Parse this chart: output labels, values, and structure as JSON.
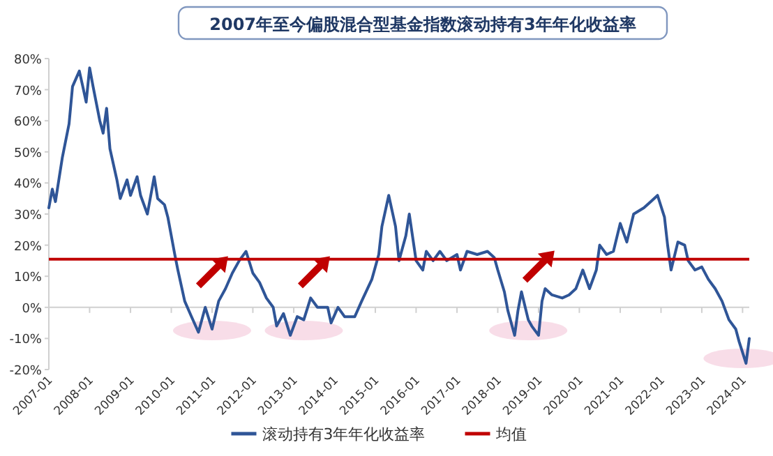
{
  "chart_data": {
    "type": "line",
    "title": "2007年至今偏股混合型基金指数滚动持有3年年化收益率",
    "x": [
      "2007-01",
      "2007-02",
      "2007-03",
      "2007-05",
      "2007-07",
      "2007-08",
      "2007-10",
      "2007-11",
      "2007-12",
      "2008-01",
      "2008-02",
      "2008-04",
      "2008-05",
      "2008-06",
      "2008-07",
      "2008-09",
      "2008-10",
      "2008-12",
      "2009-01",
      "2009-03",
      "2009-04",
      "2009-06",
      "2009-08",
      "2009-09",
      "2009-11",
      "2009-12",
      "2010-02",
      "2010-03",
      "2010-05",
      "2010-07",
      "2010-09",
      "2010-11",
      "2011-01",
      "2011-03",
      "2011-05",
      "2011-07",
      "2011-09",
      "2011-11",
      "2012-01",
      "2012-03",
      "2012-05",
      "2012-07",
      "2012-08",
      "2012-10",
      "2012-12",
      "2013-02",
      "2013-04",
      "2013-06",
      "2013-08",
      "2013-11",
      "2013-12",
      "2014-02",
      "2014-04",
      "2014-07",
      "2014-09",
      "2014-12",
      "2015-02",
      "2015-03",
      "2015-05",
      "2015-07",
      "2015-08",
      "2015-10",
      "2015-11",
      "2016-01",
      "2016-03",
      "2016-04",
      "2016-06",
      "2016-08",
      "2016-10",
      "2017-01",
      "2017-02",
      "2017-04",
      "2017-07",
      "2017-10",
      "2017-12",
      "2018-01",
      "2018-03",
      "2018-04",
      "2018-06",
      "2018-07",
      "2018-08",
      "2018-10",
      "2018-11",
      "2019-01",
      "2019-02",
      "2019-03",
      "2019-05",
      "2019-08",
      "2019-10",
      "2019-12",
      "2020-02",
      "2020-04",
      "2020-06",
      "2020-07",
      "2020-09",
      "2020-11",
      "2021-01",
      "2021-03",
      "2021-05",
      "2021-08",
      "2021-10",
      "2021-12",
      "2022-02",
      "2022-03",
      "2022-04",
      "2022-06",
      "2022-08",
      "2022-09",
      "2022-11",
      "2023-01",
      "2023-03",
      "2023-05",
      "2023-07",
      "2023-09",
      "2023-11",
      "2023-12",
      "2024-02",
      "2024-03"
    ],
    "series": [
      {
        "name": "滚动持有3年年化收益率",
        "color": "#2f5597",
        "values": [
          32,
          38,
          34,
          48,
          59,
          71,
          76,
          71,
          66,
          77,
          71,
          60,
          56,
          64,
          51,
          41,
          35,
          41,
          36,
          42,
          36,
          30,
          42,
          35,
          33,
          29,
          17,
          12,
          2,
          -3,
          -8,
          0,
          -7,
          2,
          6,
          11,
          15,
          18,
          11,
          8,
          3,
          0,
          -6,
          -2,
          -9,
          -3,
          -4,
          3,
          0,
          0,
          -5,
          0,
          -3,
          -3,
          2,
          9,
          17,
          26,
          36,
          26,
          15,
          23,
          30,
          15,
          12,
          18,
          15,
          18,
          15,
          17,
          12,
          18,
          17,
          18,
          16,
          12,
          5,
          -1,
          -9,
          -1,
          5,
          -4,
          -6,
          -9,
          2,
          6,
          4,
          3,
          4,
          6,
          12,
          6,
          12,
          20,
          17,
          18,
          27,
          21,
          30,
          32,
          34,
          36,
          29,
          20,
          12,
          21,
          20,
          15,
          12,
          13,
          9,
          6,
          2,
          -4,
          -7,
          -11,
          -18,
          -10
        ]
      }
    ],
    "xlim": [
      "2007-01",
      "2024-03"
    ],
    "xticks": [
      "2007-01",
      "2008-01",
      "2009-01",
      "2010-01",
      "2011-01",
      "2012-01",
      "2013-01",
      "2014-01",
      "2015-01",
      "2016-01",
      "2017-01",
      "2018-01",
      "2019-01",
      "2020-01",
      "2021-01",
      "2022-01",
      "2023-01",
      "2024-01"
    ],
    "ylim": [
      -20,
      80
    ],
    "yticks": [
      {
        "value": -20,
        "label": "-20%"
      },
      {
        "value": -10,
        "label": "-10%"
      },
      {
        "value": 0,
        "label": "0%"
      },
      {
        "value": 10,
        "label": "10%"
      },
      {
        "value": 20,
        "label": "20%"
      },
      {
        "value": 30,
        "label": "30%"
      },
      {
        "value": 40,
        "label": "40%"
      },
      {
        "value": 50,
        "label": "50%"
      },
      {
        "value": 60,
        "label": "60%"
      },
      {
        "value": 70,
        "label": "70%"
      },
      {
        "value": 80,
        "label": "80%"
      }
    ],
    "ref_lines": [
      {
        "axis": "y",
        "value": 15.5,
        "label": "均值",
        "color": "#c00000"
      }
    ],
    "legend": "bottom",
    "marker": "none",
    "line_style": "solid"
  }
}
